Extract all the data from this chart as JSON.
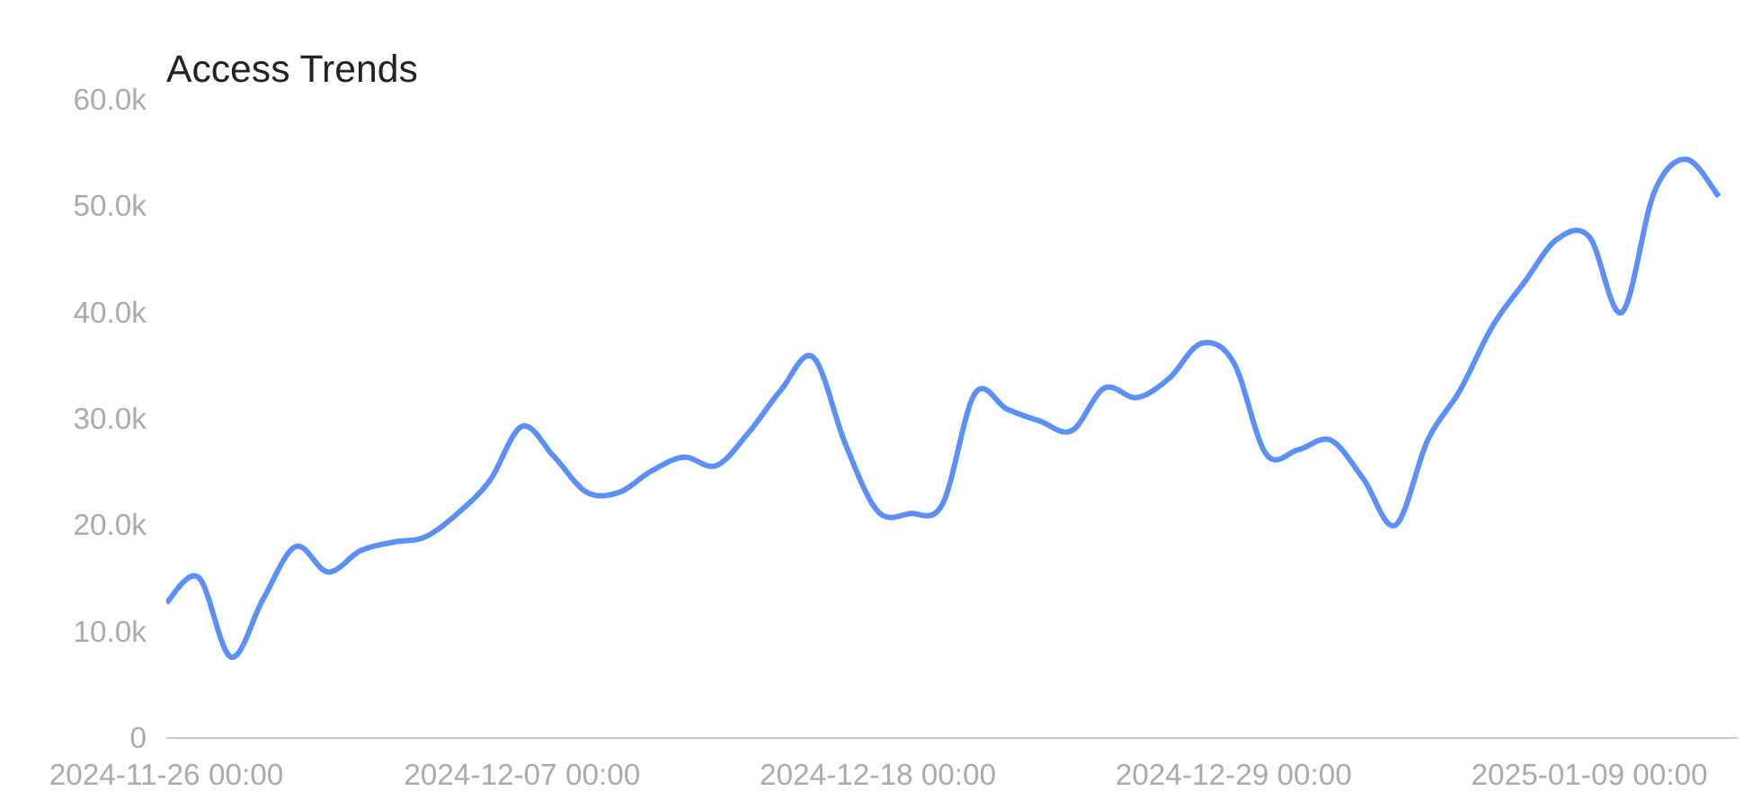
{
  "chart_data": {
    "type": "line",
    "title": "Access Trends",
    "x": [
      "2024-11-26",
      "2024-11-27",
      "2024-11-28",
      "2024-11-29",
      "2024-11-30",
      "2024-12-01",
      "2024-12-02",
      "2024-12-03",
      "2024-12-04",
      "2024-12-05",
      "2024-12-06",
      "2024-12-07",
      "2024-12-08",
      "2024-12-09",
      "2024-12-10",
      "2024-12-11",
      "2024-12-12",
      "2024-12-13",
      "2024-12-14",
      "2024-12-15",
      "2024-12-16",
      "2024-12-17",
      "2024-12-18",
      "2024-12-19",
      "2024-12-20",
      "2024-12-21",
      "2024-12-22",
      "2024-12-23",
      "2024-12-24",
      "2024-12-25",
      "2024-12-26",
      "2024-12-27",
      "2024-12-28",
      "2024-12-29",
      "2024-12-30",
      "2024-12-31",
      "2025-01-01",
      "2025-01-02",
      "2025-01-03",
      "2025-01-04",
      "2025-01-05",
      "2025-01-06",
      "2025-01-07",
      "2025-01-08",
      "2025-01-09",
      "2025-01-10",
      "2025-01-11",
      "2025-01-12",
      "2025-01-13"
    ],
    "series": [
      {
        "color": "#5b8ff9",
        "values": [
          12700,
          15100,
          7600,
          13100,
          18000,
          15600,
          17600,
          18400,
          18900,
          21100,
          24200,
          29300,
          26400,
          23100,
          23100,
          25100,
          26400,
          25600,
          28700,
          32700,
          35800,
          27600,
          21300,
          21100,
          22000,
          32400,
          30900,
          29800,
          28900,
          32900,
          32000,
          33800,
          37100,
          35300,
          26700,
          27100,
          28000,
          24400,
          20000,
          28000,
          32700,
          38700,
          42900,
          46900,
          47100,
          40000,
          51300,
          54400,
          50900
        ]
      }
    ],
    "xlim": [
      "2024-11-26",
      "2025-01-13T14:00"
    ],
    "xticks": [
      {
        "value": "2024-11-26",
        "label": "2024-11-26 00:00"
      },
      {
        "value": "2024-12-07",
        "label": "2024-12-07 00:00"
      },
      {
        "value": "2024-12-18",
        "label": "2024-12-18 00:00"
      },
      {
        "value": "2024-12-29",
        "label": "2024-12-29 00:00"
      },
      {
        "value": "2025-01-09",
        "label": "2025-01-09 00:00"
      }
    ],
    "ylim": [
      0,
      60000
    ],
    "yticks": [
      0,
      {
        "value": 10000,
        "label": "10.0k"
      },
      {
        "value": 20000,
        "label": "20.0k"
      },
      {
        "value": 30000,
        "label": "30.0k"
      },
      {
        "value": 40000,
        "label": "40.0k"
      },
      {
        "value": 50000,
        "label": "50.0k"
      },
      {
        "value": 60000,
        "label": "60.0k"
      }
    ],
    "grid": false,
    "marker": "none",
    "line_style": "solid"
  }
}
